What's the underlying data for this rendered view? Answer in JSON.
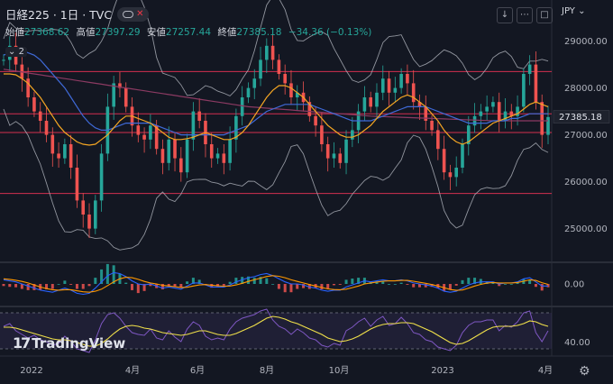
{
  "header": {
    "title": "日経225 · 1日 · TVC",
    "ohlc": [
      {
        "label": "始値",
        "value": "27368.62"
      },
      {
        "label": "高値",
        "value": "27397.29"
      },
      {
        "label": "安値",
        "value": "27257.44"
      },
      {
        "label": "終値",
        "value": "27385.18"
      }
    ],
    "change": "−34.36 (−0.13%)",
    "indicator_toggle": "2",
    "currency": "JPY"
  },
  "logo": {
    "text": "TradingView"
  },
  "colors": {
    "background": "#131722",
    "up": "#26a69a",
    "down": "#ef5350",
    "level_line": "#d32f4f",
    "sma_short": "#f5a623",
    "sma_long": "#3f6ad8",
    "sma_200": "#8b3a62",
    "bollinger": "#b2b5be",
    "rsi": "#7e57c2",
    "rsi_ma": "#f0e04a",
    "macd_line": "#2962ff",
    "macd_signal": "#ff9800"
  },
  "chart_data": [
    {
      "type": "line",
      "panel": "price",
      "title": "日経225 · 1日 · TVC",
      "x_ticks": [
        "2022",
        "4月",
        "6月",
        "8月",
        "10月",
        "2023",
        "4月"
      ],
      "ylim": [
        24300,
        29300
      ],
      "y_ticks": [
        "29000.00",
        "28000.00",
        "27000.00",
        "26000.00",
        "25000.00"
      ],
      "last_price": "27385.18",
      "horizontal_levels": [
        28350,
        27450,
        27050,
        25750
      ],
      "series": [
        {
          "values": [
            28600,
            28900,
            28500,
            28200,
            27800,
            27500,
            27300,
            27000,
            26600,
            26500,
            26800,
            26300,
            25600,
            25300,
            25000,
            25600,
            26600,
            27600,
            28100,
            28000,
            27600,
            27200,
            27000,
            26900,
            27200,
            26700,
            26400,
            26900,
            26500,
            26200,
            26900,
            27500,
            27300,
            26800,
            26500,
            26600,
            26400,
            26900,
            27400,
            27800,
            28000,
            28200,
            28600,
            28900,
            28600,
            28300,
            28100,
            27800,
            27900,
            27700,
            27400,
            27200,
            26800,
            26500,
            26600,
            26400,
            26900,
            27100,
            27500,
            27800,
            27600,
            27900,
            28200,
            27900,
            28000,
            28300,
            28100,
            27700,
            27600,
            27300,
            27100,
            26700,
            26200,
            26100,
            26300,
            26800,
            27200,
            27400,
            27500,
            27600,
            27700,
            27300,
            27500,
            27400,
            27600,
            28300,
            28500,
            27700,
            27000,
            27380
          ]
        },
        {
          "values": [
            28300,
            28300,
            28280,
            28200,
            28100,
            27950,
            27800,
            27600,
            27400,
            27200,
            27050,
            26950,
            26850,
            26800,
            26780,
            26800,
            26900,
            27000,
            27150,
            27300,
            27400,
            27400,
            27350,
            27300,
            27250,
            27150,
            27050,
            26950,
            26900,
            26900,
            26920,
            26950,
            27000,
            27050,
            27000,
            26950,
            26900,
            26900,
            26950,
            27050,
            27200,
            27400,
            27600,
            27800,
            27950,
            28050,
            28050,
            28000,
            27900,
            27800,
            27650,
            27500,
            27350,
            27200,
            27100,
            27000,
            26950,
            26950,
            27000,
            27100,
            27200,
            27350,
            27500,
            27600,
            27700,
            27800,
            27850,
            27800,
            27700,
            27600,
            27450,
            27300,
            27100,
            26950,
            26850,
            26800,
            26850,
            26950,
            27050,
            27150,
            27250,
            27300,
            27350,
            27400,
            27450,
            27550,
            27650,
            27700,
            27650,
            27600
          ]
        },
        {
          "values": [
            28700,
            28750,
            28800,
            28800,
            28750,
            28700,
            28600,
            28450,
            28300,
            28150,
            28000,
            27800,
            27600,
            27400,
            27250,
            27150,
            27100,
            27100,
            27150,
            27200,
            27250,
            27250,
            27250,
            27250,
            27250,
            27200,
            27150,
            27100,
            27050,
            27000,
            27000,
            27000,
            27000,
            27000,
            27000,
            27000,
            27000,
            27050,
            27100,
            27150,
            27200,
            27300,
            27400,
            27500,
            27550,
            27600,
            27650,
            27650,
            27650,
            27650,
            27650,
            27600,
            27550,
            27500,
            27450,
            27400,
            27350,
            27300,
            27300,
            27300,
            27300,
            27350,
            27400,
            27450,
            27500,
            27550,
            27600,
            27600,
            27600,
            27600,
            27550,
            27500,
            27450,
            27400,
            27350,
            27300,
            27250,
            27250,
            27250,
            27250,
            27300,
            27300,
            27300,
            27350,
            27350,
            27400,
            27450,
            27450,
            27450,
            27450
          ]
        },
        {
          "values": [
            28400,
            28380,
            28360,
            28340,
            28320,
            28300,
            28280,
            28260,
            28240,
            28220,
            28200,
            28180,
            28160,
            28140,
            28120,
            28100,
            28080,
            28060,
            28040,
            28020,
            28000,
            27980,
            27960,
            27940,
            27920,
            27900,
            27880,
            27860,
            27840,
            27820,
            27800,
            27780,
            27760,
            27740,
            27720,
            27700,
            27680,
            27660,
            27640,
            27620,
            27600,
            27590,
            27580,
            27570,
            27560,
            27550,
            27540,
            27530,
            27520,
            27510,
            27500,
            27490,
            27480,
            27470,
            27460,
            27450,
            27440,
            27430,
            27420,
            27410,
            27400,
            27395,
            27390,
            27385,
            27380,
            27375,
            27370,
            27365,
            27360,
            27355,
            27350,
            27345,
            27340,
            27335,
            27330,
            27325,
            27320,
            27315,
            27310,
            27305,
            27300,
            27300,
            27300,
            27300,
            27300,
            27300,
            27300,
            27300,
            27300,
            27300
          ]
        }
      ]
    },
    {
      "type": "line",
      "panel": "macd",
      "y_ticks": [
        "0.00"
      ],
      "ylim": [
        -1,
        1
      ],
      "series": [
        {
          "values": [
            0.2,
            0.15,
            0.1,
            0,
            -0.1,
            -0.2,
            -0.3,
            -0.35,
            -0.4,
            -0.3,
            -0.2,
            -0.3,
            -0.45,
            -0.5,
            -0.45,
            -0.2,
            0.1,
            0.4,
            0.55,
            0.5,
            0.35,
            0.15,
            0,
            -0.05,
            0,
            -0.1,
            -0.2,
            -0.15,
            -0.2,
            -0.25,
            -0.1,
            0.05,
            0.05,
            -0.05,
            -0.15,
            -0.15,
            -0.15,
            -0.05,
            0.1,
            0.2,
            0.3,
            0.35,
            0.45,
            0.5,
            0.4,
            0.25,
            0.1,
            0,
            0,
            -0.05,
            -0.15,
            -0.2,
            -0.3,
            -0.35,
            -0.3,
            -0.3,
            -0.15,
            -0.05,
            0.05,
            0.15,
            0.1,
            0.15,
            0.2,
            0.15,
            0.15,
            0.2,
            0.15,
            0.05,
            0,
            -0.05,
            -0.1,
            -0.2,
            -0.35,
            -0.4,
            -0.35,
            -0.2,
            -0.05,
            0.05,
            0.1,
            0.1,
            0.1,
            0,
            0.05,
            0.05,
            0.1,
            0.25,
            0.3,
            0.1,
            -0.1,
            -0.1
          ]
        },
        {
          "values": [
            0.25,
            0.22,
            0.18,
            0.12,
            0.05,
            -0.05,
            -0.15,
            -0.22,
            -0.28,
            -0.3,
            -0.28,
            -0.28,
            -0.33,
            -0.38,
            -0.4,
            -0.35,
            -0.25,
            -0.08,
            0.1,
            0.25,
            0.32,
            0.3,
            0.22,
            0.12,
            0.05,
            0,
            -0.07,
            -0.1,
            -0.13,
            -0.17,
            -0.16,
            -0.1,
            -0.05,
            -0.03,
            -0.06,
            -0.09,
            -0.11,
            -0.1,
            -0.05,
            0.03,
            0.12,
            0.2,
            0.28,
            0.36,
            0.4,
            0.37,
            0.3,
            0.2,
            0.12,
            0.05,
            -0.03,
            -0.1,
            -0.17,
            -0.24,
            -0.27,
            -0.28,
            -0.25,
            -0.18,
            -0.1,
            0,
            0.05,
            0.09,
            0.13,
            0.15,
            0.15,
            0.17,
            0.17,
            0.13,
            0.08,
            0.03,
            -0.03,
            -0.1,
            -0.18,
            -0.27,
            -0.31,
            -0.29,
            -0.2,
            -0.1,
            -0.02,
            0.04,
            0.07,
            0.05,
            0.05,
            0.05,
            0.07,
            0.13,
            0.2,
            0.17,
            0.06,
            -0.02
          ]
        }
      ]
    },
    {
      "type": "line",
      "panel": "rsi",
      "y_ticks": [
        "40.00"
      ],
      "ylim": [
        25,
        75
      ],
      "series": [
        {
          "values": [
            55,
            58,
            50,
            46,
            42,
            45,
            40,
            38,
            34,
            36,
            44,
            38,
            30,
            28,
            26,
            40,
            58,
            68,
            70,
            64,
            55,
            48,
            46,
            45,
            52,
            42,
            40,
            50,
            43,
            38,
            52,
            60,
            56,
            44,
            40,
            42,
            40,
            52,
            60,
            64,
            66,
            68,
            72,
            74,
            62,
            55,
            52,
            46,
            52,
            48,
            42,
            40,
            34,
            32,
            36,
            34,
            50,
            54,
            60,
            64,
            55,
            62,
            66,
            56,
            58,
            65,
            58,
            48,
            46,
            40,
            38,
            32,
            30,
            28,
            34,
            48,
            56,
            60,
            60,
            62,
            62,
            50,
            56,
            54,
            60,
            70,
            72,
            48,
            38,
            50
          ]
        },
        {
          "values": [
            54,
            54,
            53,
            51,
            49,
            47,
            45,
            43,
            41,
            40,
            40,
            39,
            37,
            35,
            33,
            33,
            36,
            41,
            47,
            52,
            55,
            56,
            55,
            53,
            52,
            50,
            48,
            47,
            46,
            45,
            46,
            48,
            50,
            50,
            48,
            46,
            45,
            45,
            47,
            50,
            53,
            56,
            60,
            64,
            66,
            65,
            63,
            60,
            58,
            55,
            52,
            49,
            46,
            42,
            40,
            38,
            39,
            41,
            44,
            48,
            52,
            55,
            57,
            58,
            58,
            59,
            59,
            58,
            55,
            52,
            49,
            45,
            41,
            37,
            35,
            36,
            39,
            43,
            47,
            51,
            54,
            55,
            55,
            55,
            56,
            58,
            61,
            60,
            57,
            55
          ]
        }
      ]
    }
  ]
}
